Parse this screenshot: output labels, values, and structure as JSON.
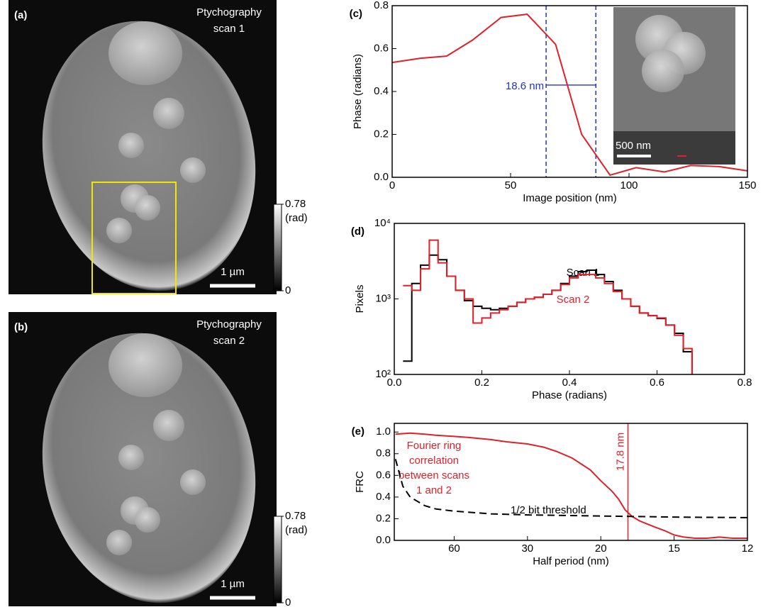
{
  "images": [
    {
      "panel": "(a)",
      "title_lines": [
        "Ptychography",
        "scan 1"
      ],
      "colorbar": {
        "lim": [
          0,
          0.78
        ],
        "ticks": [
          0,
          0.78
        ],
        "label": "(rad)"
      },
      "scale_label": "1 µm"
    },
    {
      "panel": "(b)",
      "title_lines": [
        "Ptychography",
        "scan 2"
      ],
      "colorbar": {
        "lim": [
          0,
          0.78
        ],
        "ticks": [
          0,
          0.78
        ],
        "label": "(rad)"
      },
      "scale_label": "1 µm"
    }
  ],
  "chart_data": [
    {
      "type": "line",
      "panel": "(c)",
      "xlabel": "Image position (nm)",
      "ylabel": "Phase (radians)",
      "x": [
        0,
        12,
        23,
        34,
        46,
        57,
        69,
        80,
        92,
        103,
        115,
        126,
        138,
        150
      ],
      "series": [
        {
          "color": "#e0202a",
          "values": [
            0.535,
            0.555,
            0.565,
            0.64,
            0.745,
            0.76,
            0.62,
            0.2,
            0.01,
            0.045,
            0.025,
            0.055,
            0.05,
            0.03
          ]
        }
      ],
      "xlim": [
        0,
        150
      ],
      "xticks": [
        0,
        50,
        100,
        150
      ],
      "ylim": [
        0,
        0.8
      ],
      "yticks": [
        {
          "value": 0,
          "label": "0.0"
        },
        0.2,
        0.4,
        0.6,
        0.8
      ],
      "vlines": [
        65,
        86
      ],
      "vline_color": "#2233cc",
      "annotation": "18.6 nm",
      "inset_label": "500 nm"
    },
    {
      "type": "step",
      "panel": "(d)",
      "xlabel": "Phase (radians)",
      "ylabel": "Pixels",
      "yscale": "log",
      "x": [
        0.02,
        0.04,
        0.06,
        0.08,
        0.1,
        0.12,
        0.14,
        0.16,
        0.18,
        0.2,
        0.22,
        0.24,
        0.26,
        0.28,
        0.3,
        0.32,
        0.34,
        0.36,
        0.38,
        0.4,
        0.42,
        0.44,
        0.46,
        0.48,
        0.5,
        0.52,
        0.54,
        0.56,
        0.58,
        0.6,
        0.62,
        0.64,
        0.66,
        0.68
      ],
      "series": [
        {
          "name": "Scan 1",
          "color": "#000000",
          "values": [
            150,
            1600,
            2800,
            3800,
            3300,
            2000,
            1300,
            950,
            800,
            750,
            720,
            750,
            800,
            900,
            1000,
            1050,
            1150,
            1300,
            1600,
            2000,
            2300,
            2400,
            2100,
            1700,
            1300,
            1000,
            800,
            650,
            600,
            550,
            450,
            350,
            200,
            100
          ]
        },
        {
          "name": "Scan 2",
          "color": "#e0202a",
          "values": [
            1500,
            1300,
            2500,
            6000,
            3000,
            2000,
            1300,
            1000,
            480,
            560,
            650,
            720,
            800,
            900,
            1000,
            1050,
            1150,
            1300,
            1550,
            1900,
            2100,
            2100,
            1900,
            1600,
            1250,
            1000,
            800,
            650,
            600,
            560,
            450,
            330,
            220,
            100
          ]
        }
      ],
      "xlim": [
        0,
        0.8
      ],
      "xticks": [
        {
          "value": 0,
          "label": "0.0"
        },
        0.2,
        0.4,
        0.6,
        0.8
      ],
      "ylim": [
        100,
        10000
      ],
      "yticks": [
        {
          "value": 100,
          "label": "10²"
        },
        {
          "value": 1000,
          "label": "10³"
        },
        {
          "value": 10000,
          "label": "10⁴"
        }
      ]
    },
    {
      "type": "line",
      "panel": "(e)",
      "xlabel": "Half period (nm)",
      "ylabel": "FRC",
      "xscale": "reciprocal",
      "series": [
        {
          "color": "#e0202a",
          "x": [
            300,
            150,
            100,
            80,
            60,
            50,
            40,
            35,
            30,
            27,
            25,
            23,
            21,
            20,
            19,
            18.5,
            18,
            17.5,
            17,
            16.5,
            16,
            15.5,
            15,
            14.5,
            14,
            13.5,
            13,
            12.5,
            12
          ],
          "values": [
            0.98,
            0.99,
            0.98,
            0.97,
            0.96,
            0.95,
            0.93,
            0.91,
            0.89,
            0.86,
            0.82,
            0.76,
            0.65,
            0.55,
            0.45,
            0.38,
            0.28,
            0.22,
            0.18,
            0.15,
            0.12,
            0.09,
            0.05,
            0.03,
            0.02,
            0.02,
            0.03,
            0.02,
            0.02
          ]
        },
        {
          "color": "#000000",
          "dash": true,
          "x": [
            300,
            200,
            150,
            100,
            80,
            60,
            40,
            30,
            20,
            15,
            12
          ],
          "values": [
            0.75,
            0.5,
            0.4,
            0.32,
            0.29,
            0.27,
            0.245,
            0.235,
            0.225,
            0.215,
            0.21
          ]
        }
      ],
      "xlim": [
        327,
        12
      ],
      "xticks": [
        60,
        30,
        20,
        15,
        12
      ],
      "ylim": [
        0,
        1.08
      ],
      "yticks": [
        {
          "value": 0,
          "label": "0.0"
        },
        0.2,
        0.4,
        0.6,
        0.8,
        {
          "value": 1,
          "label": "1.0"
        }
      ],
      "vline": 17.8,
      "vline_label": "17.8 nm",
      "annotation_lines": [
        "Fourier ring",
        "correlation",
        "between scans",
        "1 and 2"
      ],
      "threshold_label": "1/2 bit threshold"
    }
  ]
}
